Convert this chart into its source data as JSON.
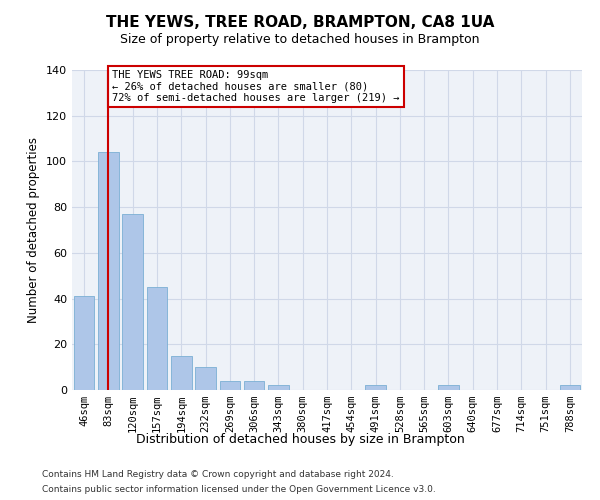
{
  "title": "THE YEWS, TREE ROAD, BRAMPTON, CA8 1UA",
  "subtitle": "Size of property relative to detached houses in Brampton",
  "xlabel": "Distribution of detached houses by size in Brampton",
  "ylabel": "Number of detached properties",
  "bar_labels": [
    "46sqm",
    "83sqm",
    "120sqm",
    "157sqm",
    "194sqm",
    "232sqm",
    "269sqm",
    "306sqm",
    "343sqm",
    "380sqm",
    "417sqm",
    "454sqm",
    "491sqm",
    "528sqm",
    "565sqm",
    "603sqm",
    "640sqm",
    "677sqm",
    "714sqm",
    "751sqm",
    "788sqm"
  ],
  "bar_values": [
    41,
    104,
    77,
    45,
    15,
    10,
    4,
    4,
    2,
    0,
    0,
    0,
    2,
    0,
    0,
    2,
    0,
    0,
    0,
    0,
    2
  ],
  "bar_color": "#aec6e8",
  "bar_edge_color": "#7bafd4",
  "grid_color": "#d0d8e8",
  "background_color": "#eef2f8",
  "vline_x": 1,
  "vline_color": "#cc0000",
  "annotation_text": "THE YEWS TREE ROAD: 99sqm\n← 26% of detached houses are smaller (80)\n72% of semi-detached houses are larger (219) →",
  "annotation_box_color": "#ffffff",
  "annotation_border_color": "#cc0000",
  "ylim": [
    0,
    140
  ],
  "yticks": [
    0,
    20,
    40,
    60,
    80,
    100,
    120,
    140
  ],
  "footer_line1": "Contains HM Land Registry data © Crown copyright and database right 2024.",
  "footer_line2": "Contains public sector information licensed under the Open Government Licence v3.0."
}
